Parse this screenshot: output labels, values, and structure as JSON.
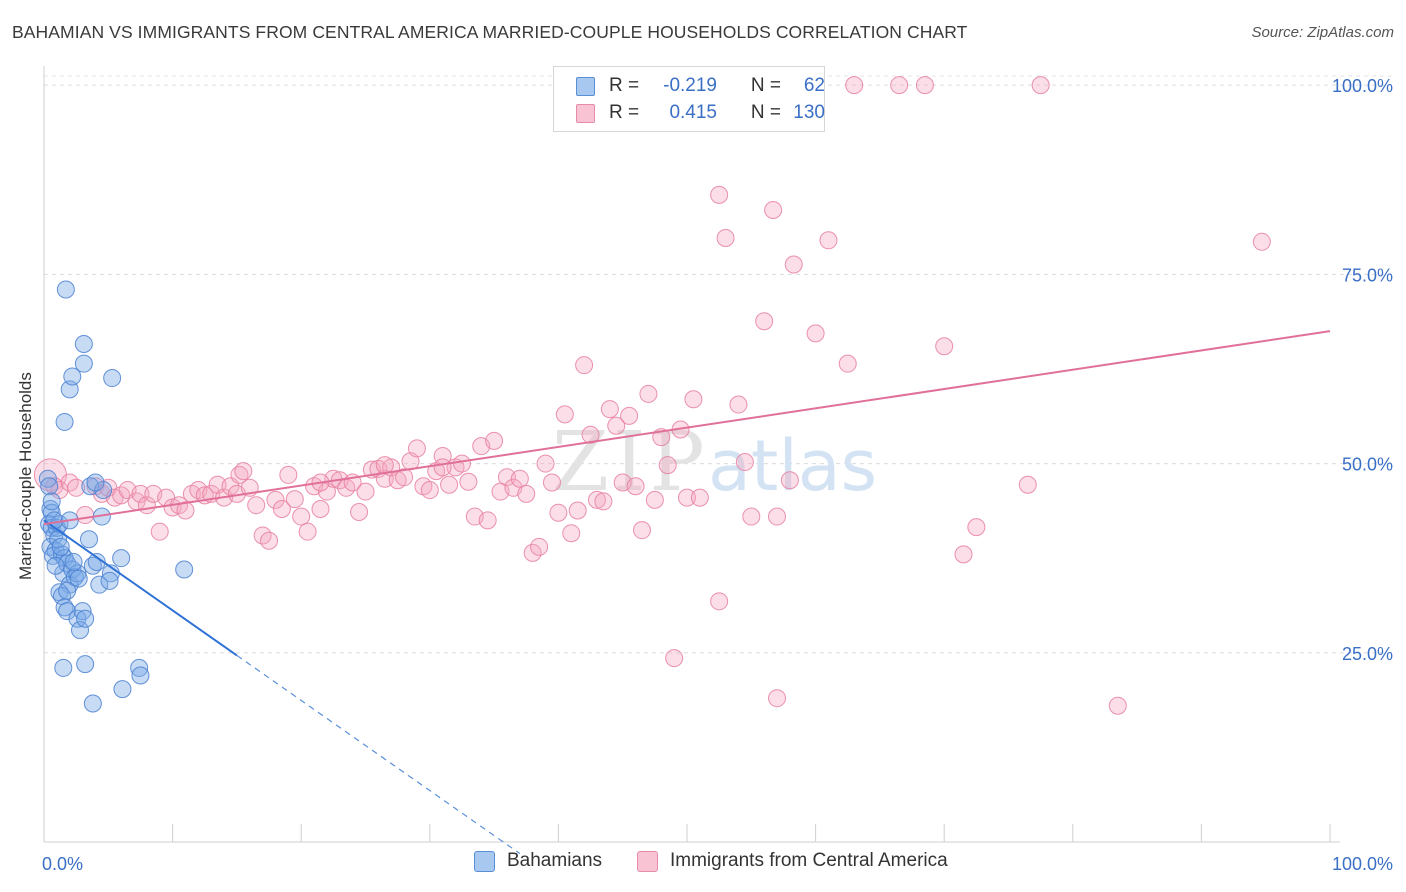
{
  "title": "BAHAMIAN VS IMMIGRANTS FROM CENTRAL AMERICA MARRIED-COUPLE HOUSEHOLDS CORRELATION CHART",
  "source": "Source: ZipAtlas.com",
  "watermark": {
    "zip": "ZIP",
    "atlas": "atlas"
  },
  "legend_top": {
    "rows": [
      {
        "r_label": "R =",
        "r_value": "-0.219",
        "n_label": "N =",
        "n_value": "62",
        "color": "#a9c8f0",
        "border": "#5a8fd8"
      },
      {
        "r_label": "R =",
        "r_value": "0.415",
        "n_label": "N =",
        "n_value": "130",
        "color": "#f8c4d4",
        "border": "#e88aa8"
      }
    ]
  },
  "chart_data": {
    "type": "scatter",
    "title": "BAHAMIAN VS IMMIGRANTS FROM CENTRAL AMERICA MARRIED-COUPLE HOUSEHOLDS CORRELATION CHART",
    "xlabel": "",
    "ylabel": "Married-couple Households",
    "xlim": [
      0,
      100
    ],
    "ylim": [
      0,
      102
    ],
    "x_tick_labels": [
      "0.0%",
      "100.0%"
    ],
    "y_ticks": [
      25,
      50,
      75,
      100
    ],
    "y_tick_labels": [
      "25.0%",
      "50.0%",
      "75.0%",
      "100.0%"
    ],
    "grid": true,
    "legend_position": "bottom",
    "series": [
      {
        "name": "Bahamians",
        "color": "#7aaae8",
        "stroke": "#4a80d0",
        "trend": {
          "x_start": 0,
          "y_start": 42.5,
          "x_solid_end": 15,
          "x_dashed_end": 37,
          "slope": -1.19
        },
        "points": [
          [
            0.3,
            48
          ],
          [
            0.4,
            47
          ],
          [
            0.5,
            44
          ],
          [
            0.6,
            43.5
          ],
          [
            0.4,
            42
          ],
          [
            0.6,
            41.5
          ],
          [
            0.8,
            40.5
          ],
          [
            0.5,
            39
          ],
          [
            0.9,
            38.5
          ],
          [
            0.7,
            37.8
          ],
          [
            1.0,
            41.5
          ],
          [
            1.2,
            42
          ],
          [
            1.4,
            38
          ],
          [
            1.6,
            37.5
          ],
          [
            1.5,
            35.5
          ],
          [
            1.8,
            36.8
          ],
          [
            2.0,
            34
          ],
          [
            2.2,
            36
          ],
          [
            2.4,
            35
          ],
          [
            2.6,
            35.5
          ],
          [
            1.2,
            33
          ],
          [
            1.4,
            32.5
          ],
          [
            1.6,
            31
          ],
          [
            1.8,
            30.5
          ],
          [
            2.6,
            29.5
          ],
          [
            2.8,
            28
          ],
          [
            3.0,
            30.5
          ],
          [
            3.2,
            29.5
          ],
          [
            1.6,
            55.5
          ],
          [
            2.0,
            59.8
          ],
          [
            2.2,
            61.5
          ],
          [
            3.1,
            63.2
          ],
          [
            3.1,
            65.8
          ],
          [
            5.3,
            61.3
          ],
          [
            1.7,
            73
          ],
          [
            3.5,
            40
          ],
          [
            3.6,
            47
          ],
          [
            3.8,
            36.5
          ],
          [
            4.1,
            37
          ],
          [
            4.3,
            34
          ],
          [
            4.5,
            43
          ],
          [
            4.6,
            46.5
          ],
          [
            5.2,
            35.5
          ],
          [
            5.1,
            34.5
          ],
          [
            6.0,
            37.5
          ],
          [
            6.1,
            20.2
          ],
          [
            7.4,
            23
          ],
          [
            7.5,
            22
          ],
          [
            10.9,
            36
          ],
          [
            3.2,
            23.5
          ],
          [
            1.5,
            23
          ],
          [
            3.8,
            18.3
          ],
          [
            0.8,
            42.5
          ],
          [
            1.1,
            40
          ],
          [
            2.3,
            37
          ],
          [
            2.7,
            34.8
          ],
          [
            0.9,
            36.5
          ],
          [
            1.3,
            39
          ],
          [
            2.0,
            42.5
          ],
          [
            0.6,
            45
          ],
          [
            1.8,
            33.2
          ],
          [
            4.0,
            47.5
          ]
        ]
      },
      {
        "name": "Immigrants from Central America",
        "color": "#f4a8c0",
        "stroke": "#e77fa0",
        "trend": {
          "x_start": 0,
          "y_start": 42,
          "x_end": 100,
          "y_end": 67.5
        },
        "points": [
          [
            0.5,
            48.5
          ],
          [
            0.8,
            47
          ],
          [
            1.2,
            46.5
          ],
          [
            2.0,
            47.5
          ],
          [
            2.5,
            46.8
          ],
          [
            3.2,
            43.2
          ],
          [
            4.0,
            47
          ],
          [
            4.5,
            46
          ],
          [
            5.0,
            46.8
          ],
          [
            5.5,
            45.5
          ],
          [
            6.0,
            45.8
          ],
          [
            6.5,
            46.5
          ],
          [
            7.2,
            45
          ],
          [
            7.5,
            46
          ],
          [
            8.0,
            44.5
          ],
          [
            8.5,
            46
          ],
          [
            9.0,
            41
          ],
          [
            9.5,
            45.5
          ],
          [
            10.0,
            44.2
          ],
          [
            10.5,
            44.5
          ],
          [
            11.0,
            43.8
          ],
          [
            11.5,
            46
          ],
          [
            12.0,
            46.5
          ],
          [
            12.5,
            45.8
          ],
          [
            13.0,
            46
          ],
          [
            13.5,
            47.2
          ],
          [
            14.0,
            45.5
          ],
          [
            14.5,
            47
          ],
          [
            15.0,
            46
          ],
          [
            15.2,
            48.5
          ],
          [
            15.5,
            49
          ],
          [
            16.0,
            46.8
          ],
          [
            16.5,
            44.5
          ],
          [
            17.0,
            40.5
          ],
          [
            17.5,
            39.8
          ],
          [
            18.0,
            45.2
          ],
          [
            18.5,
            44
          ],
          [
            19.0,
            48.5
          ],
          [
            19.5,
            45.3
          ],
          [
            20.0,
            43
          ],
          [
            20.5,
            41
          ],
          [
            21.0,
            47
          ],
          [
            21.5,
            44
          ],
          [
            22.0,
            46.3
          ],
          [
            22.5,
            48
          ],
          [
            23.0,
            47.8
          ],
          [
            23.5,
            46.8
          ],
          [
            24.0,
            47.5
          ],
          [
            24.5,
            43.6
          ],
          [
            25.0,
            46.3
          ],
          [
            25.5,
            49.2
          ],
          [
            26.0,
            49.3
          ],
          [
            26.5,
            48
          ],
          [
            27.0,
            49.5
          ],
          [
            27.5,
            47.8
          ],
          [
            28.0,
            48.2
          ],
          [
            28.5,
            50.3
          ],
          [
            29.0,
            52
          ],
          [
            29.5,
            47
          ],
          [
            30.0,
            46.5
          ],
          [
            30.5,
            49
          ],
          [
            31.0,
            51
          ],
          [
            31.5,
            47.2
          ],
          [
            32.0,
            49.5
          ],
          [
            32.5,
            50
          ],
          [
            33.0,
            47.6
          ],
          [
            33.5,
            43
          ],
          [
            34.0,
            52.3
          ],
          [
            34.5,
            42.5
          ],
          [
            35.0,
            53
          ],
          [
            35.5,
            46.3
          ],
          [
            36.0,
            48.2
          ],
          [
            36.5,
            46.8
          ],
          [
            37.0,
            48
          ],
          [
            37.5,
            46
          ],
          [
            38.0,
            38.2
          ],
          [
            38.5,
            39
          ],
          [
            39.0,
            50
          ],
          [
            39.5,
            47.5
          ],
          [
            40.0,
            43.5
          ],
          [
            40.5,
            56.5
          ],
          [
            41.0,
            40.8
          ],
          [
            41.5,
            43.8
          ],
          [
            42.0,
            63
          ],
          [
            42.5,
            53.8
          ],
          [
            43.0,
            45.2
          ],
          [
            43.5,
            45
          ],
          [
            44.0,
            57.2
          ],
          [
            44.5,
            55
          ],
          [
            45.0,
            47.5
          ],
          [
            45.5,
            56.3
          ],
          [
            46.0,
            47
          ],
          [
            46.5,
            41.2
          ],
          [
            47.0,
            59.2
          ],
          [
            47.5,
            45.2
          ],
          [
            48.0,
            53.5
          ],
          [
            48.5,
            49.8
          ],
          [
            49.0,
            24.3
          ],
          [
            49.5,
            54.5
          ],
          [
            50.0,
            45.5
          ],
          [
            50.5,
            58.5
          ],
          [
            51.0,
            45.5
          ],
          [
            52.5,
            31.8
          ],
          [
            53.0,
            79.8
          ],
          [
            54.0,
            57.8
          ],
          [
            54.5,
            50.2
          ],
          [
            55.0,
            43
          ],
          [
            56.0,
            68.8
          ],
          [
            57.0,
            19
          ],
          [
            58.0,
            47.8
          ],
          [
            60.0,
            67.2
          ],
          [
            61.0,
            79.5
          ],
          [
            62.5,
            63.2
          ],
          [
            52.5,
            85.5
          ],
          [
            56.7,
            83.5
          ],
          [
            58.3,
            76.3
          ],
          [
            63.0,
            100
          ],
          [
            66.5,
            100
          ],
          [
            68.5,
            100
          ],
          [
            71.5,
            38
          ],
          [
            72.5,
            41.6
          ],
          [
            76.5,
            47.2
          ],
          [
            77.5,
            100
          ],
          [
            83.5,
            18
          ],
          [
            94.7,
            79.3
          ],
          [
            57.0,
            43
          ],
          [
            70.0,
            65.5
          ],
          [
            31.0,
            49.5
          ],
          [
            26.5,
            49.8
          ],
          [
            21.5,
            47.5
          ]
        ]
      }
    ]
  },
  "bottom_legend": [
    {
      "label": "Bahamians",
      "color": "#a9c8f0",
      "border": "#5a8fd8"
    },
    {
      "label": "Immigrants from Central America",
      "color": "#f8c4d4",
      "border": "#e88aa8"
    }
  ]
}
